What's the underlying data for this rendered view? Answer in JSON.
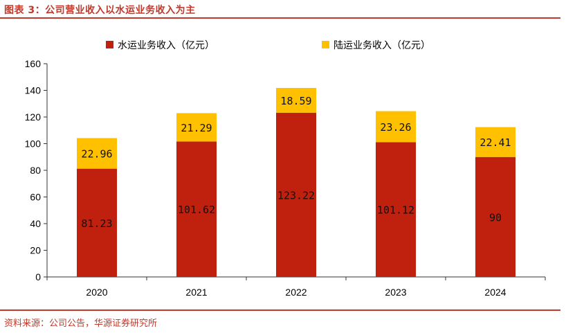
{
  "header": {
    "title": "图表 3：公司营业收入以水运业务收入为主"
  },
  "footer": {
    "source": "资料来源：公司公告，华源证券研究所"
  },
  "colors": {
    "accent": "#c0392b",
    "water": "#c0200e",
    "land": "#ffc000"
  },
  "chart_data": {
    "type": "bar",
    "stacked": true,
    "title": "",
    "xlabel": "",
    "ylabel": "",
    "categories": [
      "2020",
      "2021",
      "2022",
      "2023",
      "2024"
    ],
    "series": [
      {
        "name": "水运业务收入（亿元）",
        "color": "#c0200e",
        "values": [
          81.23,
          101.62,
          123.22,
          101.12,
          90
        ],
        "labels": [
          "81.23",
          "101.62",
          "123.22",
          "101.12",
          "90"
        ]
      },
      {
        "name": "陆运业务收入（亿元）",
        "color": "#ffc000",
        "values": [
          22.96,
          21.29,
          18.59,
          23.26,
          22.41
        ],
        "labels": [
          "22.96",
          "21.29",
          "18.59",
          "23.26",
          "22.41"
        ]
      }
    ],
    "ylim": [
      0,
      160
    ],
    "yticks": [
      0,
      20,
      40,
      60,
      80,
      100,
      120,
      140,
      160
    ],
    "legend_position": "top-center",
    "grid": false
  }
}
